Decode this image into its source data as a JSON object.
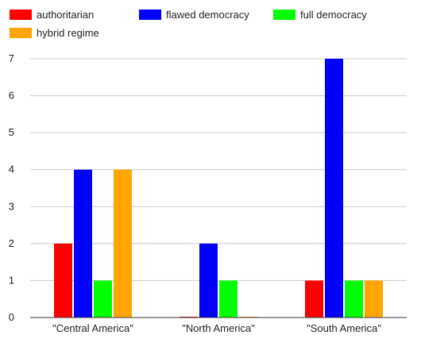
{
  "chart_data": {
    "type": "bar",
    "title": "",
    "xlabel": "",
    "ylabel": "",
    "categories": [
      "\"Central America\"",
      "\"North America\"",
      "\"South America\""
    ],
    "series": [
      {
        "name": "authoritarian",
        "color": "#ff0000",
        "values": [
          2,
          0,
          1
        ]
      },
      {
        "name": "flawed democracy",
        "color": "#0000ff",
        "values": [
          4,
          2,
          7
        ]
      },
      {
        "name": "full democracy",
        "color": "#00ff00",
        "values": [
          1,
          1,
          1
        ]
      },
      {
        "name": "hybrid regime",
        "color": "#ffa500",
        "values": [
          4,
          0,
          1
        ]
      }
    ],
    "ylim": [
      0,
      7
    ],
    "yticks": [
      "0",
      "1",
      "2",
      "3",
      "4",
      "5",
      "6",
      "7"
    ],
    "grid": true,
    "legend_position": "top-left"
  }
}
